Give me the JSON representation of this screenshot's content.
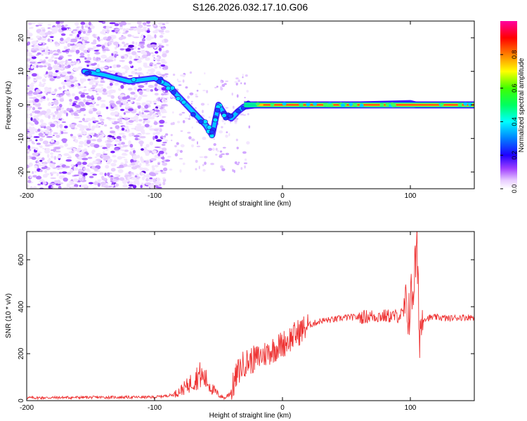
{
  "title": "S126.2026.032.17.10.G06",
  "colors": {
    "snr_line": "#ee3333",
    "ridge": "#ff2222",
    "speckle": "#8a2be2"
  },
  "chart_data": [
    {
      "type": "heatmap",
      "xlabel": "Height of straight line (km)",
      "ylabel": "Frequency (Hz)",
      "xlim": [
        -200,
        150
      ],
      "ylim": [
        -25,
        25
      ],
      "x_ticks": [
        -200,
        -100,
        0,
        100
      ],
      "y_ticks": [
        -20,
        -10,
        0,
        10,
        20
      ],
      "colorbar": {
        "label": "Normalized spectral amplitude",
        "range": [
          0,
          1
        ],
        "ticks": [
          "0.0",
          "0.2",
          "0.4",
          "0.6",
          "0.8"
        ],
        "tick_values": [
          0,
          0.2,
          0.4,
          0.6,
          0.8
        ]
      },
      "ridge": {
        "description": "dominant frequency track",
        "x": [
          -155,
          -140,
          -120,
          -100,
          -90,
          -80,
          -70,
          -60,
          -55,
          -50,
          -45,
          -40,
          -35,
          -30,
          -20,
          0,
          50,
          100,
          105,
          150
        ],
        "y": [
          10,
          9,
          7,
          8,
          6,
          2,
          -2,
          -6,
          -9,
          0,
          -3,
          -4,
          -2,
          -0.5,
          0,
          0,
          0,
          0.5,
          0,
          0
        ]
      }
    },
    {
      "type": "line",
      "xlabel": "Height of straight line (km)",
      "ylabel": "SNR (10 * v/v)",
      "xlim": [
        -200,
        150
      ],
      "ylim": [
        0,
        720
      ],
      "x_ticks": [
        -200,
        -100,
        0,
        100
      ],
      "y_ticks": [
        0,
        200,
        400,
        600
      ],
      "series": [
        {
          "name": "SNR",
          "x": [
            -200,
            -150,
            -100,
            -85,
            -75,
            -65,
            -60,
            -55,
            -50,
            -45,
            -40,
            -35,
            -30,
            -25,
            -20,
            -10,
            0,
            10,
            20,
            30,
            40,
            50,
            60,
            70,
            80,
            90,
            95,
            100,
            103,
            105,
            107,
            110,
            120,
            130,
            140,
            150
          ],
          "y": [
            12,
            14,
            15,
            25,
            60,
            110,
            90,
            50,
            25,
            10,
            40,
            120,
            160,
            170,
            180,
            210,
            240,
            280,
            320,
            340,
            345,
            355,
            355,
            360,
            360,
            360,
            370,
            400,
            520,
            650,
            300,
            350,
            355,
            350,
            355,
            355
          ]
        }
      ]
    }
  ]
}
